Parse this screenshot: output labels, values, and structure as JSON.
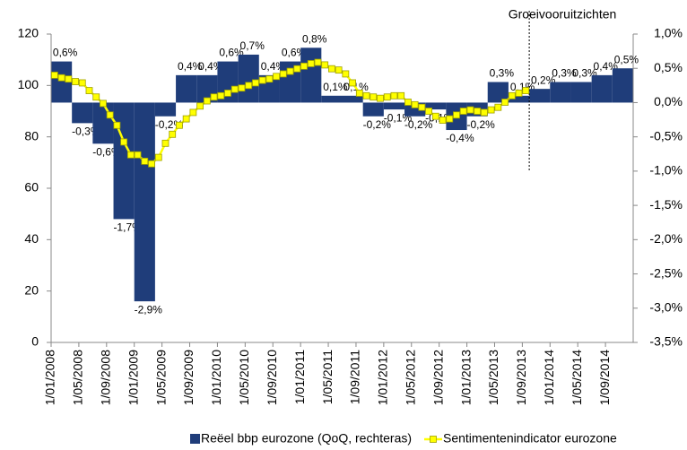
{
  "chart_data": {
    "type": "combo",
    "xticks": [
      "1/01/2008",
      "1/05/2008",
      "1/09/2008",
      "1/01/2009",
      "1/05/2009",
      "1/09/2009",
      "1/01/2010",
      "1/05/2010",
      "1/09/2010",
      "1/01/2011",
      "1/05/2011",
      "1/09/2011",
      "1/01/2012",
      "1/05/2012",
      "1/09/2012",
      "1/01/2013",
      "1/05/2013",
      "1/09/2013",
      "1/01/2014",
      "1/05/2014",
      "1/09/2014"
    ],
    "ylim": [
      0,
      120
    ],
    "yticks": [
      0,
      20,
      40,
      60,
      80,
      100,
      120
    ],
    "y2lim": [
      -3.5,
      1.0
    ],
    "y2ticks": [
      {
        "value": 1.0,
        "label": "1,0%"
      },
      {
        "value": 0.5,
        "label": "0,5%"
      },
      {
        "value": 0,
        "label": "0,0%"
      },
      {
        "value": -0.5,
        "label": "-0,5%"
      },
      {
        "value": -1.0,
        "label": "-1,0%"
      },
      {
        "value": -1.5,
        "label": "-1,5%"
      },
      {
        "value": -2.0,
        "label": "-2,0%"
      },
      {
        "value": -2.5,
        "label": "-2,5%"
      },
      {
        "value": -3.0,
        "label": "-3,0%"
      },
      {
        "value": -3.5,
        "label": "-3,5%"
      }
    ],
    "series": [
      {
        "name": "Reëel bbp eurozone (QoQ, rechteras)",
        "type": "bar",
        "axis": "y2",
        "color": "#1f3d7a",
        "values": [
          0.6,
          -0.3,
          -0.6,
          -1.7,
          -2.9,
          -0.2,
          0.4,
          0.4,
          0.6,
          0.7,
          0.4,
          0.6,
          0.8,
          0.1,
          0.1,
          -0.2,
          -0.1,
          -0.2,
          -0.1,
          -0.4,
          -0.2,
          0.3,
          0.1,
          0.2,
          0.3,
          0.3,
          0.4,
          0.5
        ],
        "value_labels": [
          "0,6%",
          "-0,3%",
          "-0,6%",
          "-1,7%",
          "-2,9%",
          "-0,2%",
          "0,4%",
          "0,4%",
          "0,6%",
          "0,7%",
          "0,4%",
          "0,6%",
          "0,8%",
          "0,1%",
          "0,1%",
          "-0,2%",
          "-0,1%",
          "-0,2%",
          "-0,1%",
          "-0,4%",
          "-0,2%",
          "0,3%",
          "0,1%",
          "0,2%",
          "0,3%",
          "0,3%",
          "0,4%",
          "0,5%"
        ]
      },
      {
        "name": "Sentimentenindicator eurozone",
        "type": "line",
        "color": "#ffff00",
        "values": [
          104,
          103,
          102.5,
          101.5,
          101,
          98,
          95.5,
          93,
          88.5,
          84.5,
          78,
          73,
          73,
          70.5,
          69.5,
          72,
          77.5,
          81,
          84.5,
          87,
          89.5,
          92,
          94,
          95.5,
          96,
          97,
          98.5,
          99,
          100,
          101,
          102,
          102.5,
          103.5,
          104.5,
          105.5,
          106.5,
          107.5,
          108.5,
          109,
          108,
          106.5,
          106,
          104.5,
          101,
          97,
          96,
          95.5,
          95,
          95.5,
          96,
          96,
          93.5,
          92.5,
          91.5,
          90,
          88,
          86.5,
          87,
          88.5,
          90,
          90.5,
          90,
          89.5,
          90.5,
          91.5,
          93.5,
          96,
          97,
          98
        ]
      }
    ],
    "annotations": [
      {
        "text": "Groeivooruitzichten"
      }
    ]
  }
}
